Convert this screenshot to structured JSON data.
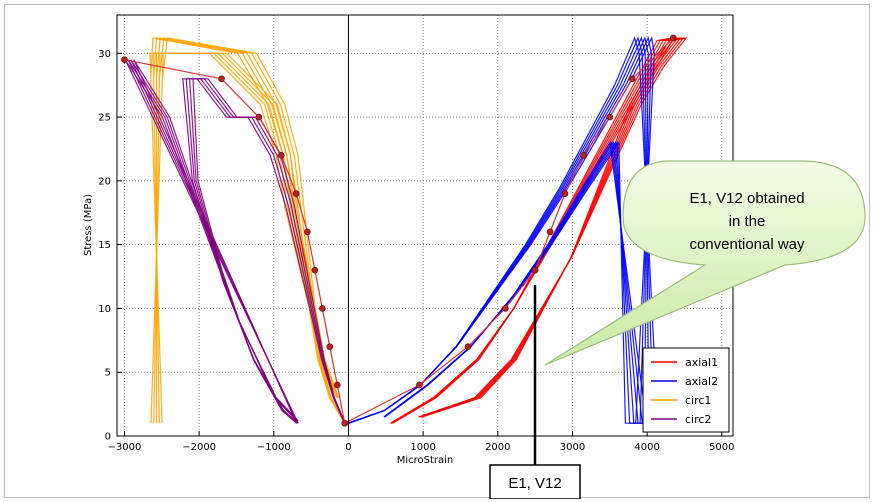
{
  "chart_data": {
    "type": "line",
    "xlabel": "MicroStrain",
    "ylabel": "Stress (MPa)",
    "xlim": [
      -3100,
      5150
    ],
    "ylim": [
      0,
      33
    ],
    "xticks": [
      -3000,
      -2000,
      -1000,
      0,
      1000,
      2000,
      3000,
      4000,
      5000
    ],
    "yticks": [
      0,
      5,
      10,
      15,
      20,
      25,
      30
    ],
    "xtick_labels": [
      "−3000",
      "−2000",
      "−1000",
      "0",
      "1000",
      "2000",
      "3000",
      "4000",
      "5000"
    ],
    "ytick_labels": [
      "0",
      "5",
      "10",
      "15",
      "20",
      "25",
      "30"
    ],
    "grid": true,
    "legend_position": "bottom-right",
    "series": [
      {
        "name": "axial1",
        "color": "#ff0000",
        "loops": [
          [
            600,
            1
          ],
          [
            1200,
            3
          ],
          [
            1800,
            6
          ],
          [
            2300,
            10
          ],
          [
            2700,
            14
          ],
          [
            3100,
            18
          ],
          [
            3500,
            22
          ],
          [
            3900,
            26
          ],
          [
            4200,
            29
          ],
          [
            4400,
            31
          ],
          [
            4600,
            31.2
          ],
          [
            4300,
            29
          ],
          [
            4000,
            26
          ],
          [
            3700,
            22
          ],
          [
            3400,
            18
          ],
          [
            3100,
            14
          ],
          [
            2700,
            10
          ],
          [
            2300,
            6
          ],
          [
            1800,
            3
          ],
          [
            1000,
            1.5
          ]
        ],
        "passes": 6,
        "spread": 110
      },
      {
        "name": "axial2",
        "color": "#0000ff",
        "loops": [
          [
            0,
            1
          ],
          [
            500,
            2
          ],
          [
            1000,
            4
          ],
          [
            1500,
            7
          ],
          [
            2000,
            11
          ],
          [
            2500,
            15
          ],
          [
            3000,
            19.5
          ],
          [
            3400,
            23.5
          ],
          [
            3800,
            27.5
          ],
          [
            4100,
            31.2
          ],
          [
            4150,
            30
          ],
          [
            4150,
            15
          ],
          [
            4150,
            1
          ],
          [
            4000,
            1
          ],
          [
            3700,
            23
          ],
          [
            3300,
            19.5
          ],
          [
            2800,
            15
          ],
          [
            2300,
            11
          ],
          [
            1700,
            7
          ],
          [
            1100,
            4
          ],
          [
            500,
            1.5
          ]
        ],
        "passes": 6,
        "spread": 110
      },
      {
        "name": "circ1",
        "color": "#ffa500",
        "loops": [
          [
            -50,
            1
          ],
          [
            -250,
            3
          ],
          [
            -400,
            6
          ],
          [
            -500,
            10
          ],
          [
            -600,
            14
          ],
          [
            -700,
            18
          ],
          [
            -800,
            22
          ],
          [
            -1000,
            26
          ],
          [
            -1400,
            30
          ],
          [
            -2600,
            31.2
          ],
          [
            -2650,
            28
          ],
          [
            -2650,
            1
          ],
          [
            -2650,
            30
          ],
          [
            -1800,
            30
          ],
          [
            -1100,
            26
          ],
          [
            -900,
            22
          ],
          [
            -800,
            18
          ],
          [
            -650,
            14
          ],
          [
            -500,
            10
          ],
          [
            -350,
            6
          ],
          [
            -150,
            3
          ]
        ],
        "passes": 5,
        "spread": 90
      },
      {
        "name": "circ2",
        "color": "#800080",
        "loops": [
          [
            -50,
            1
          ],
          [
            -200,
            3
          ],
          [
            -350,
            6
          ],
          [
            -500,
            10
          ],
          [
            -650,
            14
          ],
          [
            -800,
            18
          ],
          [
            -1000,
            22
          ],
          [
            -1300,
            25
          ],
          [
            -1600,
            25
          ],
          [
            -2000,
            28
          ],
          [
            -2200,
            28
          ],
          [
            -2100,
            20
          ],
          [
            -1700,
            12
          ],
          [
            -1300,
            6
          ],
          [
            -900,
            2
          ],
          [
            -700,
            1
          ],
          [
            -3000,
            29.5
          ],
          [
            -2500,
            25
          ],
          [
            -2000,
            17
          ],
          [
            -1500,
            9
          ],
          [
            -1000,
            3
          ],
          [
            -700,
            1.2
          ]
        ],
        "passes": 4,
        "spread": 90
      }
    ],
    "envelope_markers": {
      "color": "#b22222",
      "points": [
        [
          -3000,
          29.5
        ],
        [
          -1700,
          28
        ],
        [
          -1200,
          25
        ],
        [
          -900,
          22
        ],
        [
          -700,
          19
        ],
        [
          -550,
          16
        ],
        [
          -450,
          13
        ],
        [
          -350,
          10
        ],
        [
          -250,
          7
        ],
        [
          -150,
          4
        ],
        [
          -50,
          1
        ],
        [
          950,
          4
        ],
        [
          1600,
          7
        ],
        [
          2100,
          10
        ],
        [
          2500,
          13
        ],
        [
          2700,
          16
        ],
        [
          2900,
          19
        ],
        [
          3150,
          22
        ],
        [
          3500,
          25
        ],
        [
          3800,
          28
        ],
        [
          4350,
          31.2
        ]
      ]
    }
  },
  "annotations": {
    "callout_line1": "E1, V12 obtained",
    "callout_line2": "in the",
    "callout_line3": "conventional way",
    "box_label": "E1, V12"
  }
}
